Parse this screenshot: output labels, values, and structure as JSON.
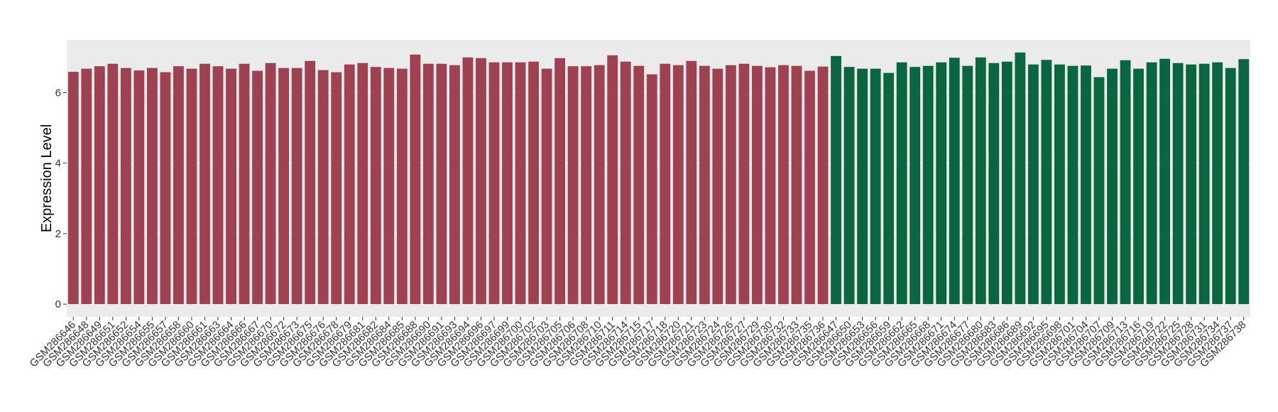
{
  "chart_data": {
    "type": "bar",
    "y_label": "Expression Level",
    "ylim": [
      -0.36,
      7.5
    ],
    "yticks": [
      0,
      2,
      4,
      6
    ],
    "grid": true,
    "series": [
      {
        "color": "#9e4150",
        "categories": [
          "GSM286646",
          "GSM286648",
          "GSM286649",
          "GSM286651",
          "GSM286652",
          "GSM286654",
          "GSM286655",
          "GSM286657",
          "GSM286658",
          "GSM286660",
          "GSM286661",
          "GSM286663",
          "GSM286664",
          "GSM286666",
          "GSM286667",
          "GSM286670",
          "GSM286672",
          "GSM286673",
          "GSM286675",
          "GSM286676",
          "GSM286678",
          "GSM286679",
          "GSM286681",
          "GSM286682",
          "GSM286684",
          "GSM286685",
          "GSM286688",
          "GSM286690",
          "GSM286691",
          "GSM286693",
          "GSM286694",
          "GSM286696",
          "GSM286697",
          "GSM286699",
          "GSM286700",
          "GSM286702",
          "GSM286703",
          "GSM286705",
          "GSM286706",
          "GSM286708",
          "GSM286710",
          "GSM286711",
          "GSM286714",
          "GSM286715",
          "GSM286717",
          "GSM286718",
          "GSM286720",
          "GSM286721",
          "GSM286723",
          "GSM286724",
          "GSM286726",
          "GSM286727",
          "GSM286729",
          "GSM286730",
          "GSM286732",
          "GSM286733",
          "GSM286735",
          "GSM286736"
        ],
        "values": [
          6.59,
          6.68,
          6.75,
          6.82,
          6.7,
          6.63,
          6.7,
          6.58,
          6.75,
          6.68,
          6.82,
          6.75,
          6.68,
          6.82,
          6.62,
          6.84,
          6.7,
          6.7,
          6.9,
          6.64,
          6.58,
          6.8,
          6.84,
          6.73,
          6.7,
          6.68,
          7.08,
          6.82,
          6.82,
          6.78,
          7.0,
          6.98,
          6.86,
          6.86,
          6.86,
          6.88,
          6.68,
          6.98,
          6.75,
          6.75,
          6.78,
          7.06,
          6.88,
          6.76,
          6.52,
          6.82,
          6.78,
          6.9,
          6.76,
          6.68,
          6.78,
          6.82,
          6.76,
          6.72,
          6.78,
          6.76,
          6.62,
          6.74
        ]
      },
      {
        "color": "#0a6640",
        "categories": [
          "GSM286647",
          "GSM286650",
          "GSM286653",
          "GSM286656",
          "GSM286659",
          "GSM286662",
          "GSM286665",
          "GSM286668",
          "GSM286671",
          "GSM286674",
          "GSM286677",
          "GSM286680",
          "GSM286683",
          "GSM286686",
          "GSM286689",
          "GSM286692",
          "GSM286695",
          "GSM286698",
          "GSM286701",
          "GSM286704",
          "GSM286707",
          "GSM286709",
          "GSM286713",
          "GSM286716",
          "GSM286719",
          "GSM286722",
          "GSM286725",
          "GSM286728",
          "GSM286731",
          "GSM286734",
          "GSM286737",
          "GSM286738"
        ],
        "values": [
          7.04,
          6.73,
          6.68,
          6.68,
          6.56,
          6.86,
          6.73,
          6.76,
          6.86,
          6.99,
          6.76,
          7.0,
          6.84,
          6.88,
          7.14,
          6.8,
          6.93,
          6.8,
          6.76,
          6.77,
          6.44,
          6.68,
          6.92,
          6.68,
          6.86,
          6.96,
          6.84,
          6.8,
          6.82,
          6.86,
          6.7,
          6.95
        ]
      }
    ]
  }
}
